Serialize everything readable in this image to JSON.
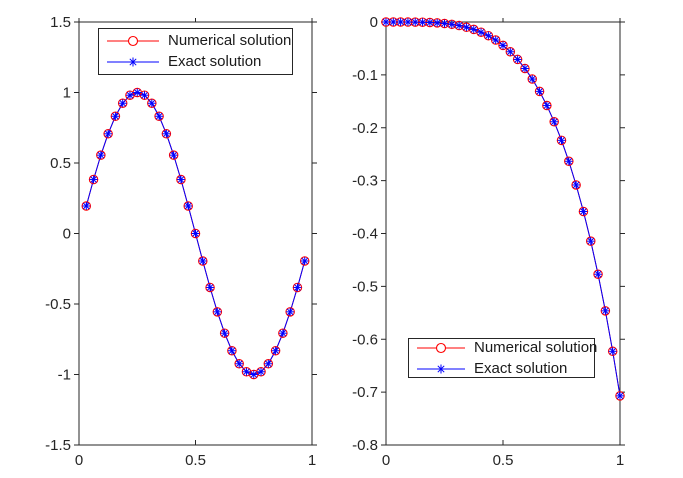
{
  "style": {
    "background": "#ffffff",
    "axis_color": "#262626",
    "tick_label_color": "#262626",
    "legend_border_color": "#262626",
    "legend_text_color": "#1a1a1a",
    "numerical_color": "#ff0000",
    "exact_color": "#0000ff"
  },
  "chart_data": [
    {
      "type": "line",
      "title": "",
      "xlabel": "",
      "ylabel": "",
      "xlim": [
        0,
        1
      ],
      "ylim": [
        -1.5,
        1.5
      ],
      "grid": false,
      "legend_position": "top-center-inside",
      "xtick_values": [
        0,
        0.5,
        1
      ],
      "xtick_labels": [
        "0",
        "0.5",
        "1"
      ],
      "ytick_values": [
        1.5,
        1,
        0.5,
        0,
        -0.5,
        -1,
        -1.5
      ],
      "ytick_labels": [
        "1.5",
        "1",
        "0.5",
        "0",
        "-0.5",
        "-1",
        "-1.5"
      ],
      "x": [
        0.03125,
        0.0625,
        0.09375,
        0.125,
        0.15625,
        0.1875,
        0.21875,
        0.25,
        0.28125,
        0.3125,
        0.34375,
        0.375,
        0.40625,
        0.4375,
        0.46875,
        0.5,
        0.53125,
        0.5625,
        0.59375,
        0.625,
        0.65625,
        0.6875,
        0.71875,
        0.75,
        0.78125,
        0.8125,
        0.84375,
        0.875,
        0.90625,
        0.9375,
        0.96875
      ],
      "series": [
        {
          "name": "Numerical solution",
          "color": "#ff0000",
          "marker": "circle",
          "line_style": "solid",
          "values": [
            0.1951,
            0.3827,
            0.5556,
            0.7071,
            0.8315,
            0.9239,
            0.9808,
            1,
            0.9808,
            0.9239,
            0.8315,
            0.7071,
            0.5556,
            0.3827,
            0.1951,
            0,
            -0.1951,
            -0.3827,
            -0.5556,
            -0.7071,
            -0.8315,
            -0.9239,
            -0.9808,
            -1,
            -0.9808,
            -0.9239,
            -0.8315,
            -0.7071,
            -0.5556,
            -0.3827,
            -0.1951
          ]
        },
        {
          "name": "Exact solution",
          "color": "#0000ff",
          "marker": "asterisk",
          "line_style": "solid",
          "values": [
            0.1951,
            0.3827,
            0.5556,
            0.7071,
            0.8315,
            0.9239,
            0.9808,
            1,
            0.9808,
            0.9239,
            0.8315,
            0.7071,
            0.5556,
            0.3827,
            0.1951,
            0,
            -0.1951,
            -0.3827,
            -0.5556,
            -0.7071,
            -0.8315,
            -0.9239,
            -0.9808,
            -1,
            -0.9808,
            -0.9239,
            -0.8315,
            -0.7071,
            -0.5556,
            -0.3827,
            -0.1951
          ]
        }
      ]
    },
    {
      "type": "line",
      "title": "",
      "xlabel": "",
      "ylabel": "",
      "xlim": [
        0,
        1
      ],
      "ylim": [
        -0.8,
        0
      ],
      "grid": false,
      "legend_position": "lower-left-inside",
      "xtick_values": [
        0,
        0.5,
        1
      ],
      "xtick_labels": [
        "0",
        "0.5",
        "1"
      ],
      "ytick_values": [
        0,
        -0.1,
        -0.2,
        -0.3,
        -0.4,
        -0.5,
        -0.6,
        -0.7,
        -0.8
      ],
      "ytick_labels": [
        "0",
        "-0.1",
        "-0.2",
        "-0.3",
        "-0.4",
        "-0.5",
        "-0.6",
        "-0.7",
        "-0.8"
      ],
      "x": [
        0,
        0.03125,
        0.0625,
        0.09375,
        0.125,
        0.15625,
        0.1875,
        0.21875,
        0.25,
        0.28125,
        0.3125,
        0.34375,
        0.375,
        0.40625,
        0.4375,
        0.46875,
        0.5,
        0.53125,
        0.5625,
        0.59375,
        0.625,
        0.65625,
        0.6875,
        0.71875,
        0.75,
        0.78125,
        0.8125,
        0.84375,
        0.875,
        0.90625,
        0.9375,
        0.96875,
        1
      ],
      "series": [
        {
          "name": "Numerical solution",
          "color": "#ff0000",
          "marker": "circle",
          "line_style": "solid",
          "values": [
            0,
            0,
            0,
            -0.0001,
            -0.0002,
            -0.0004,
            -0.0009,
            -0.0016,
            -0.0028,
            -0.0044,
            -0.0067,
            -0.0099,
            -0.014,
            -0.0193,
            -0.0259,
            -0.0341,
            -0.0442,
            -0.0563,
            -0.0708,
            -0.0879,
            -0.1079,
            -0.1312,
            -0.158,
            -0.1887,
            -0.2238,
            -0.2634,
            -0.3082,
            -0.3584,
            -0.4145,
            -0.477,
            -0.5463,
            -0.6228,
            -0.7071
          ]
        },
        {
          "name": "Exact solution",
          "color": "#0000ff",
          "marker": "asterisk",
          "line_style": "solid",
          "values": [
            0,
            0,
            0,
            -0.0001,
            -0.0002,
            -0.0004,
            -0.0009,
            -0.0016,
            -0.0028,
            -0.0044,
            -0.0067,
            -0.0099,
            -0.014,
            -0.0193,
            -0.0259,
            -0.0341,
            -0.0442,
            -0.0563,
            -0.0708,
            -0.0879,
            -0.1079,
            -0.1312,
            -0.158,
            -0.1887,
            -0.2238,
            -0.2634,
            -0.3082,
            -0.3584,
            -0.4145,
            -0.477,
            -0.5463,
            -0.6228,
            -0.7071
          ]
        }
      ]
    }
  ]
}
